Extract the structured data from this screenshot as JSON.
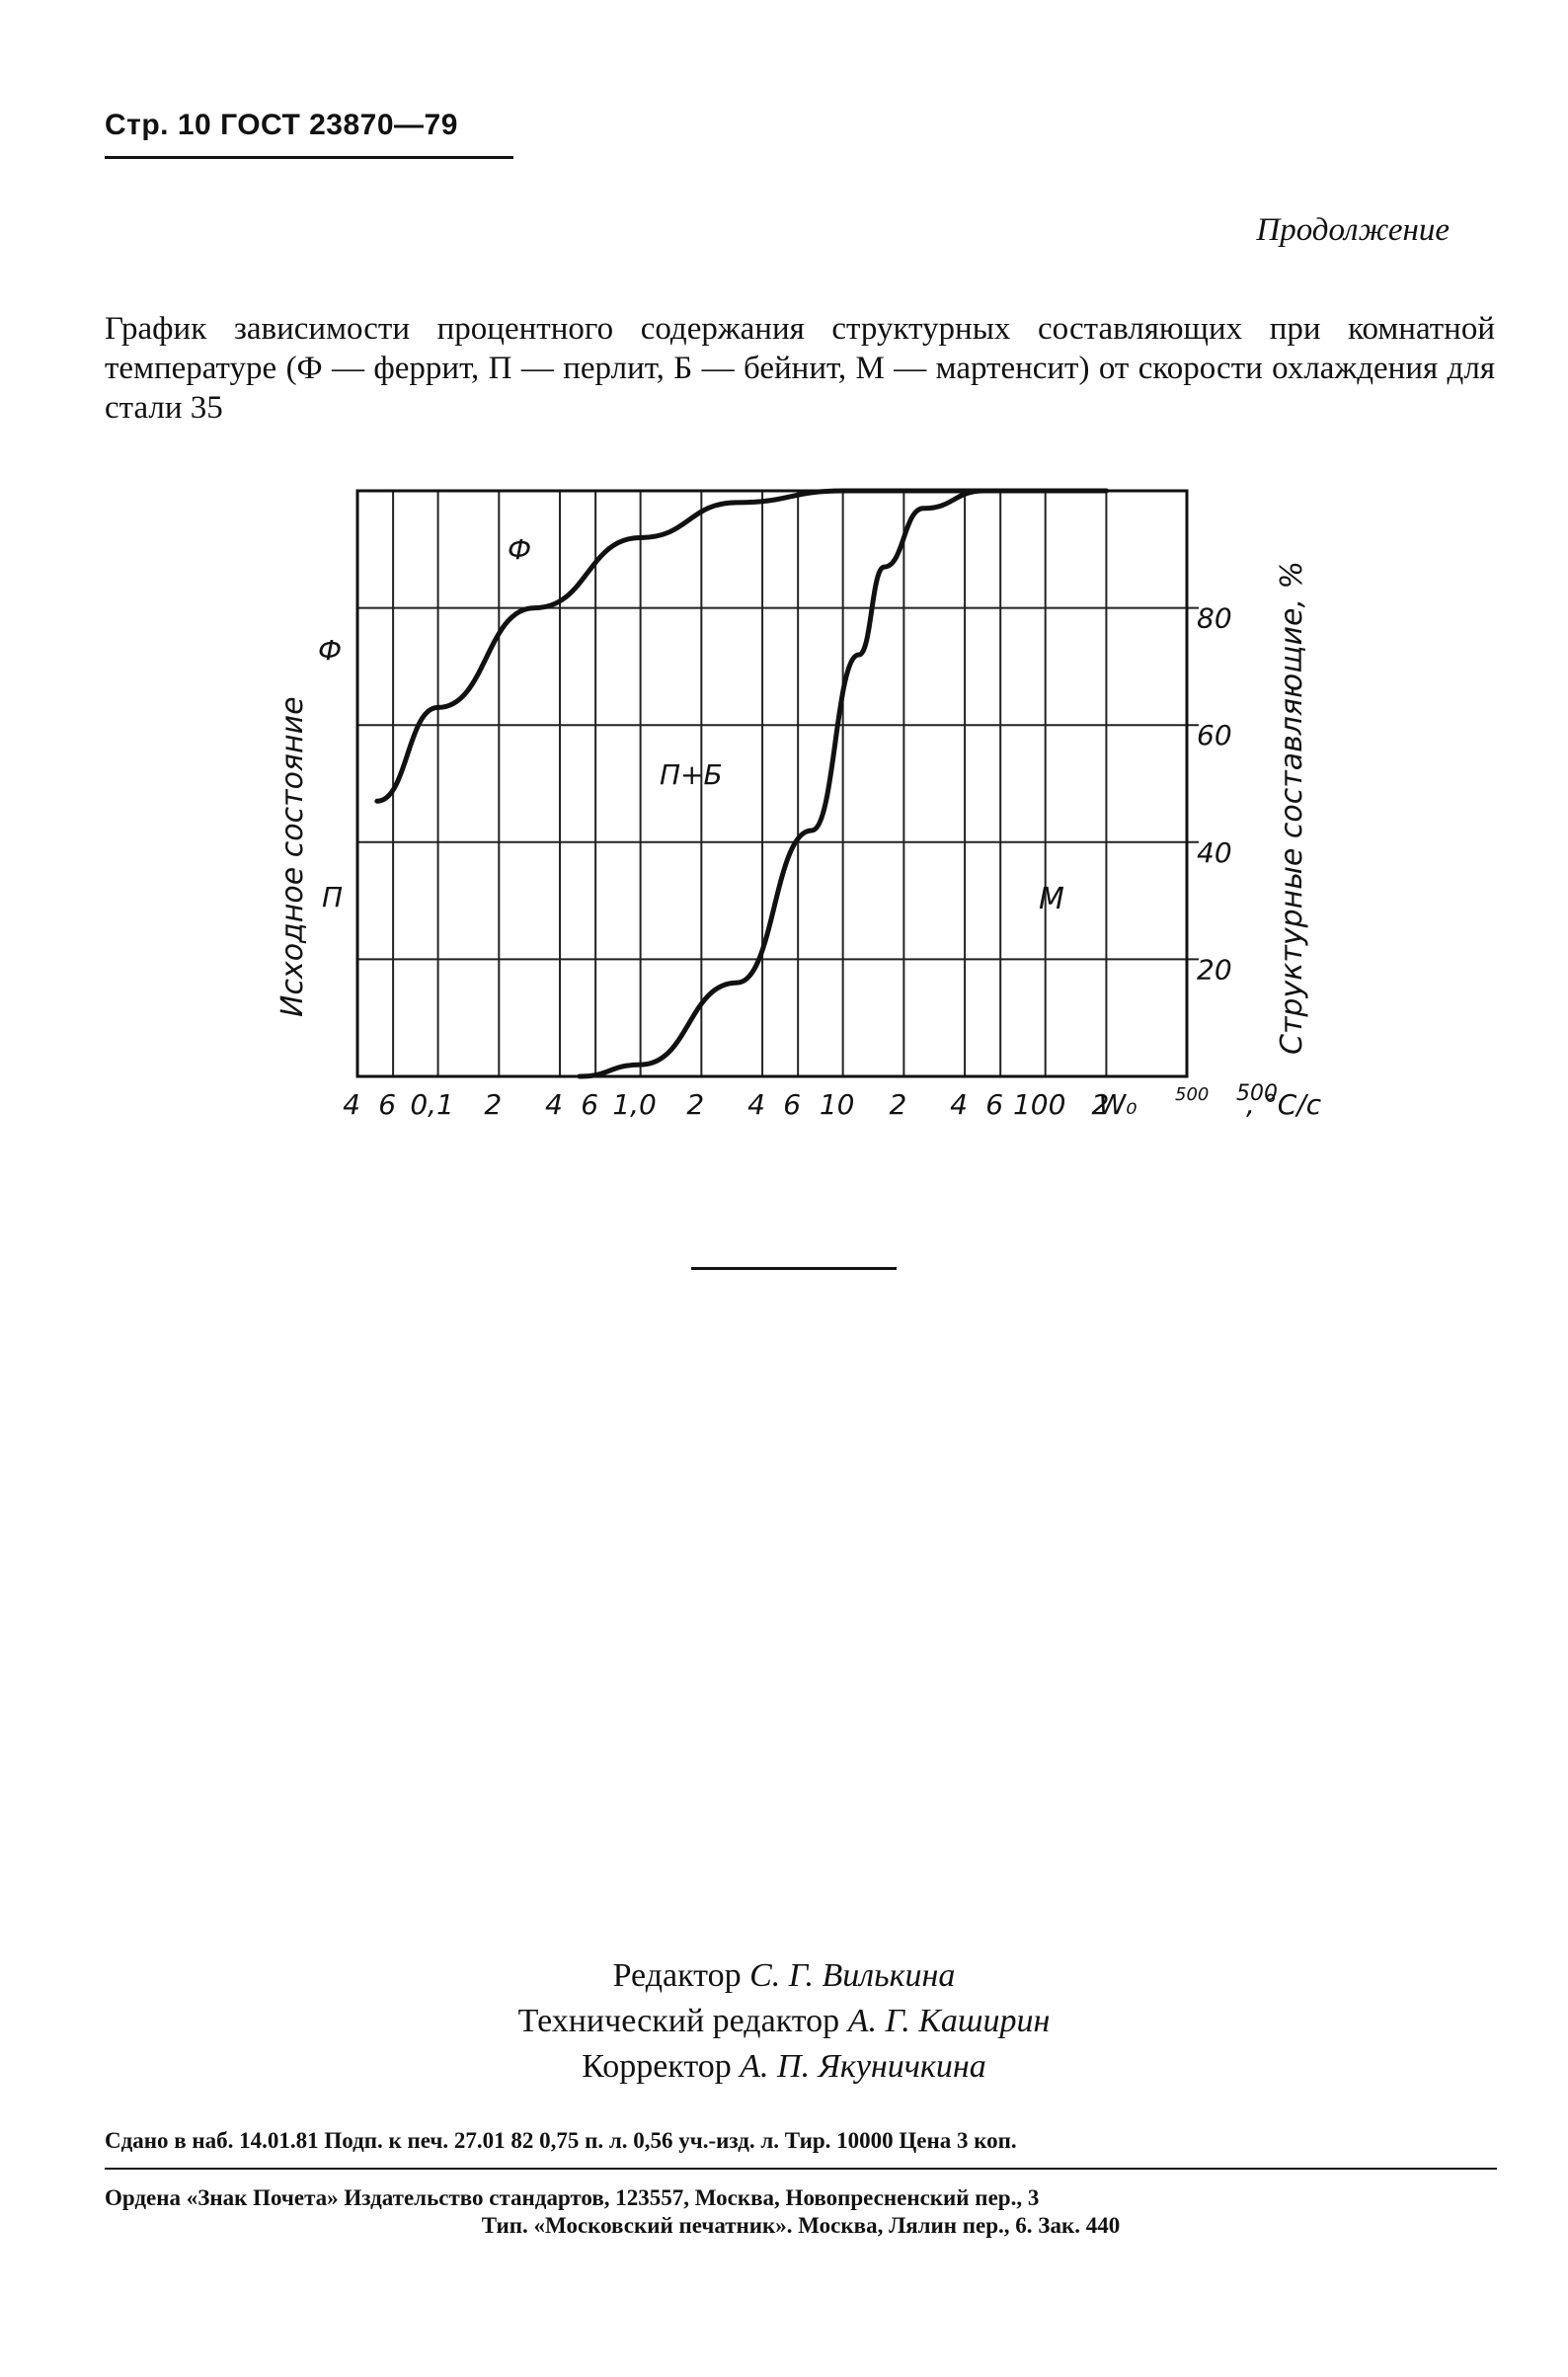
{
  "header": {
    "page": "Стр. 10",
    "standard": "ГОСТ 23870—79"
  },
  "continuation": "Продолжение",
  "caption": "График зависимости процентного содержания структурных составляющих при комнатной температуре (Ф — феррит, П — перлит, Б — бейнит, М — мартенсит) от скорости охлаждения для стали 35",
  "chart_data": {
    "type": "line",
    "left_axis_label": "Исходное состояние",
    "left_axis_marks": [
      "Ф",
      "П"
    ],
    "right_axis_label": "Структурные составляющие, %",
    "y_ticks": [
      "80",
      "60",
      "40",
      "20"
    ],
    "ylim": [
      0,
      100
    ],
    "x_ticks": [
      "4",
      "6",
      "0,1",
      "2",
      "4",
      "6",
      "1,0",
      "2",
      "4",
      "6",
      "10",
      "2",
      "4",
      "6",
      "100",
      "2",
      "W₀",
      "500"
    ],
    "x_unit": ", °C/c",
    "x_end_labels": [
      "500",
      "500"
    ],
    "x_scale": "log",
    "regions": [
      "Ф",
      "П+Б",
      "М"
    ],
    "series": [
      {
        "name": "Ф",
        "points": [
          [
            0.05,
            47
          ],
          [
            0.1,
            63
          ],
          [
            0.3,
            80
          ],
          [
            1.0,
            92
          ],
          [
            3,
            98
          ],
          [
            10,
            100
          ],
          [
            30,
            100
          ],
          [
            200,
            100
          ]
        ]
      },
      {
        "name": "М",
        "points": [
          [
            0.5,
            0
          ],
          [
            1.0,
            2
          ],
          [
            3,
            16
          ],
          [
            7,
            42
          ],
          [
            12,
            72
          ],
          [
            16,
            87
          ],
          [
            25,
            97
          ],
          [
            50,
            100
          ],
          [
            200,
            100
          ]
        ]
      }
    ]
  },
  "credits": {
    "editor_role": "Редактор",
    "editor_name": "С. Г. Вилькина",
    "tech_role": "Технический редактор",
    "tech_name": "А. Г. Каширин",
    "proof_role": "Корректор",
    "proof_name": "А. П. Якуничкина"
  },
  "imprint": "Сдано в наб. 14.01.81 Подп. к печ. 27.01 82 0,75 п. л. 0,56 уч.-изд. л. Тир. 10000 Цена 3 коп.",
  "publisher_line1": "Ордена «Знак Почета» Издательство стандартов, 123557, Москва, Новопресненский пер., 3",
  "publisher_line2": "Тип. «Московский печатник». Москва, Лялин пер., 6. Зак. 440"
}
